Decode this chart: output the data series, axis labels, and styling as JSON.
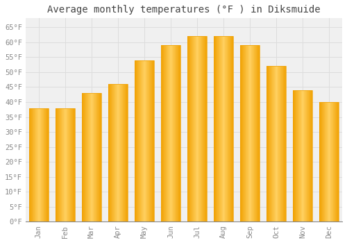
{
  "months": [
    "Jan",
    "Feb",
    "Mar",
    "Apr",
    "May",
    "Jun",
    "Jul",
    "Aug",
    "Sep",
    "Oct",
    "Nov",
    "Dec"
  ],
  "values": [
    38,
    38,
    43,
    46,
    54,
    59,
    62,
    62,
    59,
    52,
    44,
    40
  ],
  "bar_color_center": "#FFD060",
  "bar_color_edge": "#F0A000",
  "title": "Average monthly temperatures (°F ) in Diksmuide",
  "title_fontsize": 10,
  "ylabel_ticks": [
    "0°F",
    "5°F",
    "10°F",
    "15°F",
    "20°F",
    "25°F",
    "30°F",
    "35°F",
    "40°F",
    "45°F",
    "50°F",
    "55°F",
    "60°F",
    "65°F"
  ],
  "ytick_values": [
    0,
    5,
    10,
    15,
    20,
    25,
    30,
    35,
    40,
    45,
    50,
    55,
    60,
    65
  ],
  "ylim": [
    0,
    68
  ],
  "background_color": "#FFFFFF",
  "plot_bg_color": "#F0F0F0",
  "grid_color": "#DDDDDD",
  "tick_label_color": "#888888",
  "title_color": "#444444",
  "font_family": "monospace",
  "bar_width": 0.75
}
